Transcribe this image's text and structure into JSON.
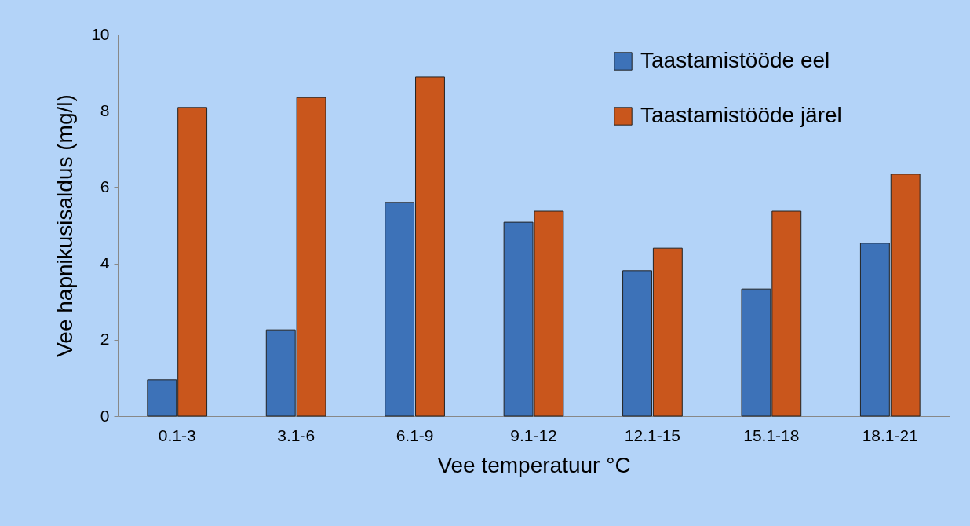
{
  "chart_data": {
    "type": "bar",
    "xlabel": "Vee temperatuur °C",
    "ylabel": "Vee hapnikusisaldus (mg/l)",
    "categories": [
      "0.1-3",
      "3.1-6",
      "6.1-9",
      "9.1-12",
      "12.1-15",
      "15.1-18",
      "18.1-21"
    ],
    "series": [
      {
        "name": "Taastamistööde eel",
        "color": "#3d72b8",
        "values": [
          0.95,
          2.26,
          5.6,
          5.08,
          3.81,
          3.33,
          4.53
        ]
      },
      {
        "name": "Taastamistööde järel",
        "color": "#c9561c",
        "values": [
          8.09,
          8.35,
          8.89,
          5.37,
          4.4,
          5.37,
          6.34
        ]
      }
    ],
    "ylim": [
      0,
      10
    ],
    "yticks": [
      0,
      2,
      4,
      6,
      8,
      10
    ],
    "grid": false,
    "legend": "top right"
  }
}
